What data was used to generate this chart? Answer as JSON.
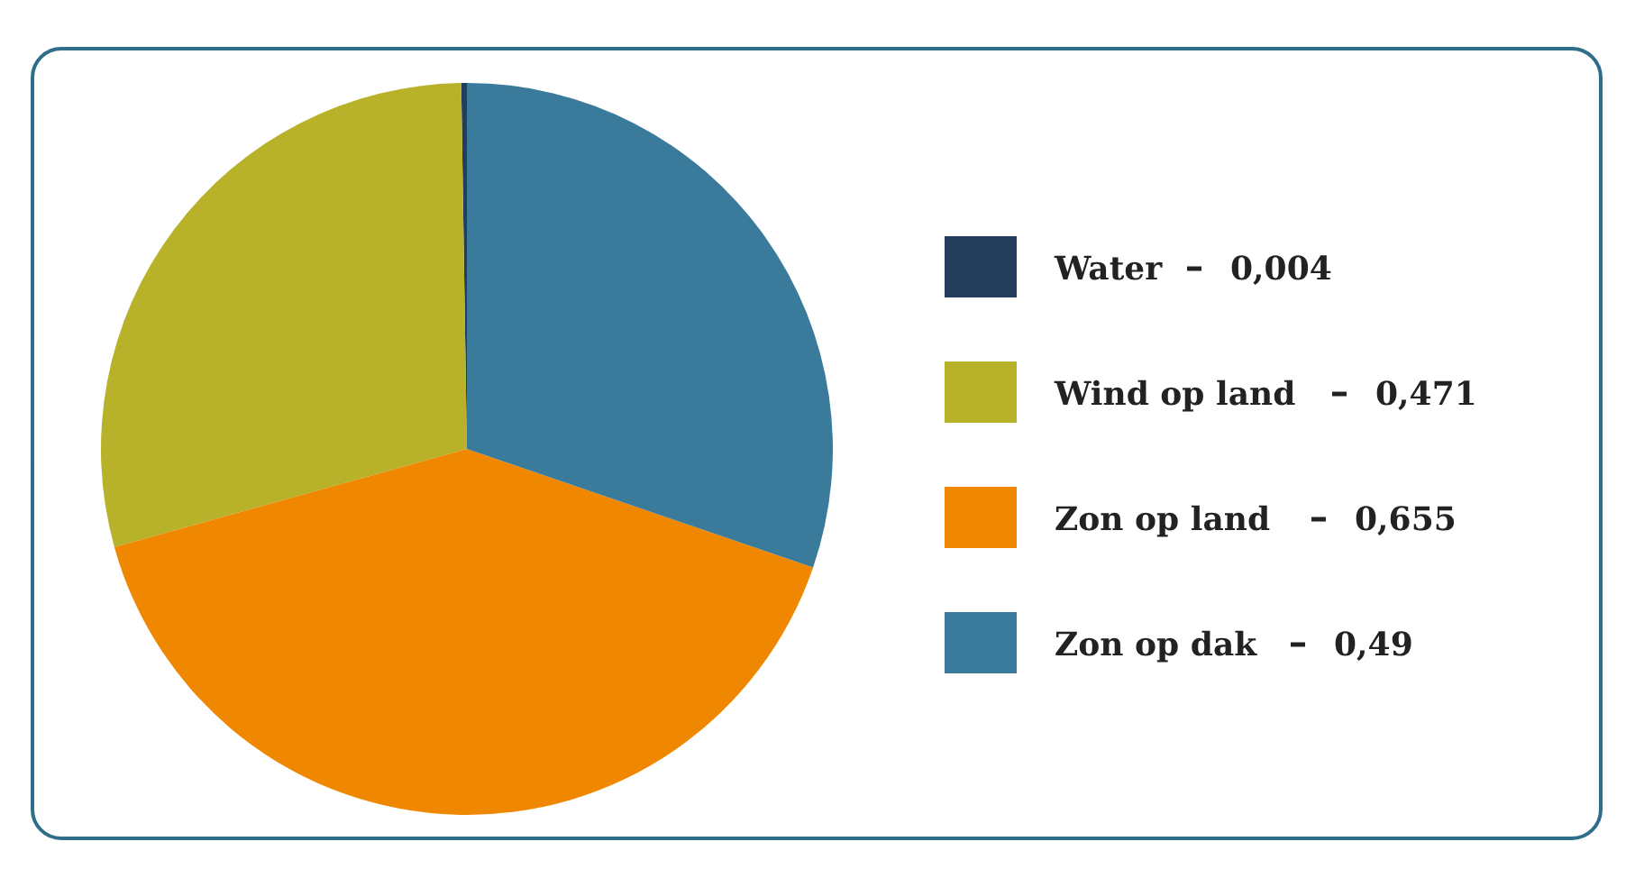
{
  "chart_data": {
    "type": "pie",
    "categories": [
      "Water",
      "Wind op land",
      "Zon op land",
      "Zon op dak"
    ],
    "values": [
      0.004,
      0.471,
      0.655,
      0.49
    ],
    "value_labels": [
      "0,004",
      "0,471",
      "0,655",
      "0,49"
    ],
    "colors": [
      "#233d5c",
      "#b8b22a",
      "#f08700",
      "#3a7a9a"
    ],
    "legend": "right"
  }
}
